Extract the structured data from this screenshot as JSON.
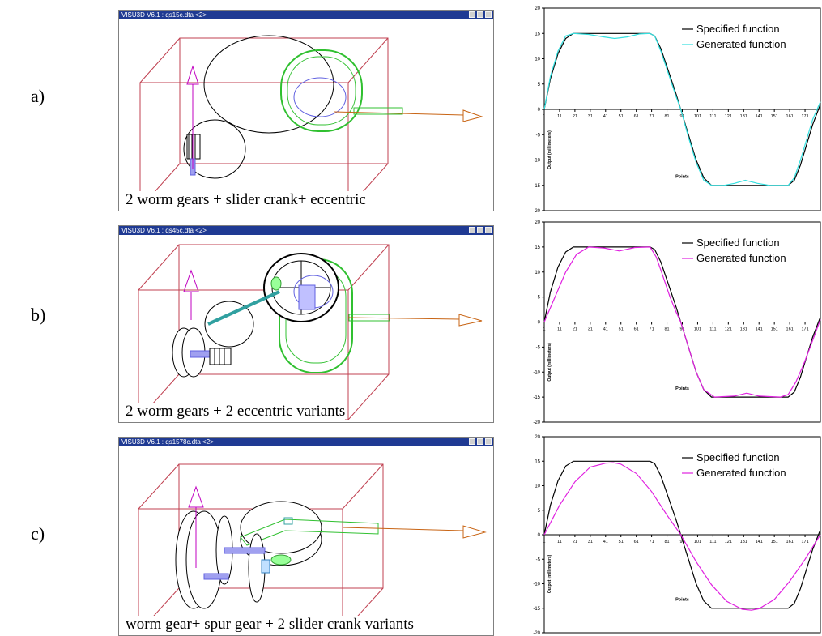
{
  "rows": [
    {
      "label": "a)",
      "window_title": "VISU3D V6.1 : qs15c.dta <2>",
      "caption": "2 worm gears + slider crank+ eccentric"
    },
    {
      "label": "b)",
      "window_title": "VISU3D V6.1 : qs45c.dta <2>",
      "caption": "2 worm gears + 2 eccentric variants"
    },
    {
      "label": "c)",
      "window_title": "VISU3D V6.1 : qs1578c.dta <2>",
      "caption": "worm gear+ spur gear + 2 slider crank variants"
    }
  ],
  "colors": {
    "titlebar": "#1f3a93",
    "box": "#c04050",
    "arrow_up": "#c000c0",
    "arrow_right": "#c86414",
    "green": "#30c030",
    "blue": "#6060e0",
    "specified": "#000000",
    "generated_a": "#33e0e0",
    "generated_bc": "#e020e0"
  },
  "chart_data": [
    {
      "type": "line",
      "xlabel": "Points",
      "ylabel": "Output (millimeters)",
      "x_ticks": [
        1,
        11,
        21,
        31,
        41,
        51,
        61,
        71,
        81,
        91,
        101,
        111,
        121,
        131,
        141,
        151,
        161,
        171
      ],
      "y_ticks": [
        20,
        15,
        10,
        5,
        0,
        -5,
        -10,
        -15,
        -20
      ],
      "ylim": [
        -20,
        20
      ],
      "xlim": [
        1,
        181
      ],
      "series": [
        {
          "name": "Specified function",
          "color": "#000000",
          "points": [
            [
              1,
              0
            ],
            [
              5,
              6
            ],
            [
              10,
              11
            ],
            [
              15,
              14
            ],
            [
              20,
              15
            ],
            [
              70,
              15
            ],
            [
              73,
              14.5
            ],
            [
              77,
              12
            ],
            [
              82,
              7.5
            ],
            [
              87,
              3
            ],
            [
              90,
              0
            ],
            [
              95,
              -5
            ],
            [
              100,
              -10
            ],
            [
              105,
              -13.5
            ],
            [
              110,
              -15
            ],
            [
              160,
              -15
            ],
            [
              164,
              -14
            ],
            [
              168,
              -11
            ],
            [
              172,
              -7
            ],
            [
              176,
              -3
            ],
            [
              181,
              1
            ]
          ]
        },
        {
          "name": "Generated function",
          "color": "#33e0e0",
          "points": [
            [
              1,
              0
            ],
            [
              5,
              6.5
            ],
            [
              10,
              11.5
            ],
            [
              15,
              14.5
            ],
            [
              20,
              15
            ],
            [
              30,
              14.8
            ],
            [
              40,
              14.3
            ],
            [
              47,
              14
            ],
            [
              55,
              14.3
            ],
            [
              63,
              14.9
            ],
            [
              70,
              15
            ],
            [
              73,
              14.5
            ],
            [
              77,
              11.5
            ],
            [
              82,
              7
            ],
            [
              87,
              2.5
            ],
            [
              90,
              0
            ],
            [
              95,
              -5.5
            ],
            [
              100,
              -10.5
            ],
            [
              105,
              -14
            ],
            [
              110,
              -15
            ],
            [
              118,
              -15
            ],
            [
              125,
              -14.6
            ],
            [
              132,
              -14
            ],
            [
              140,
              -14.6
            ],
            [
              148,
              -15
            ],
            [
              160,
              -15
            ],
            [
              164,
              -13.5
            ],
            [
              168,
              -10
            ],
            [
              172,
              -6
            ],
            [
              176,
              -2
            ],
            [
              181,
              1.5
            ]
          ]
        }
      ]
    },
    {
      "type": "line",
      "xlabel": "Points",
      "ylabel": "Output (millimeters)",
      "x_ticks": [
        1,
        11,
        21,
        31,
        41,
        51,
        61,
        71,
        81,
        91,
        101,
        111,
        121,
        131,
        141,
        151,
        161,
        171
      ],
      "y_ticks": [
        20,
        15,
        10,
        5,
        0,
        -5,
        -10,
        -15,
        -20
      ],
      "ylim": [
        -20,
        20
      ],
      "xlim": [
        1,
        181
      ],
      "series": [
        {
          "name": "Specified function",
          "color": "#000000",
          "points": [
            [
              1,
              0
            ],
            [
              5,
              6
            ],
            [
              10,
              11
            ],
            [
              15,
              14
            ],
            [
              20,
              15
            ],
            [
              70,
              15
            ],
            [
              73,
              14.5
            ],
            [
              77,
              12
            ],
            [
              82,
              7.5
            ],
            [
              87,
              3
            ],
            [
              90,
              0
            ],
            [
              95,
              -5
            ],
            [
              100,
              -10
            ],
            [
              105,
              -13.5
            ],
            [
              110,
              -15
            ],
            [
              160,
              -15
            ],
            [
              164,
              -14
            ],
            [
              168,
              -11
            ],
            [
              172,
              -7
            ],
            [
              176,
              -3
            ],
            [
              181,
              1
            ]
          ]
        },
        {
          "name": "Generated function",
          "color": "#e020e0",
          "points": [
            [
              1,
              0
            ],
            [
              8,
              5
            ],
            [
              15,
              10
            ],
            [
              22,
              13.5
            ],
            [
              30,
              15
            ],
            [
              40,
              14.8
            ],
            [
              50,
              14.2
            ],
            [
              60,
              14.9
            ],
            [
              70,
              15
            ],
            [
              74,
              13
            ],
            [
              78,
              9.5
            ],
            [
              83,
              5
            ],
            [
              87,
              2
            ],
            [
              90,
              0
            ],
            [
              95,
              -5
            ],
            [
              100,
              -10
            ],
            [
              105,
              -13.5
            ],
            [
              112,
              -15
            ],
            [
              125,
              -14.8
            ],
            [
              133,
              -14.2
            ],
            [
              141,
              -14.8
            ],
            [
              155,
              -15
            ],
            [
              160,
              -14.5
            ],
            [
              165,
              -12
            ],
            [
              170,
              -8.5
            ],
            [
              175,
              -4.5
            ],
            [
              181,
              0.5
            ]
          ]
        }
      ]
    },
    {
      "type": "line",
      "xlabel": "Points",
      "ylabel": "Output (millimeters)",
      "x_ticks": [
        1,
        11,
        21,
        31,
        41,
        51,
        61,
        71,
        81,
        91,
        101,
        111,
        121,
        131,
        141,
        151,
        161,
        171
      ],
      "y_ticks": [
        20,
        15,
        10,
        5,
        0,
        -5,
        -10,
        -15,
        -20
      ],
      "ylim": [
        -20,
        20
      ],
      "xlim": [
        1,
        181
      ],
      "series": [
        {
          "name": "Specified function",
          "color": "#000000",
          "points": [
            [
              1,
              0
            ],
            [
              5,
              6
            ],
            [
              10,
              11
            ],
            [
              15,
              14
            ],
            [
              20,
              15
            ],
            [
              70,
              15
            ],
            [
              73,
              14.5
            ],
            [
              77,
              12
            ],
            [
              82,
              7.5
            ],
            [
              87,
              3
            ],
            [
              90,
              0
            ],
            [
              95,
              -5
            ],
            [
              100,
              -10
            ],
            [
              105,
              -13.5
            ],
            [
              110,
              -15
            ],
            [
              160,
              -15
            ],
            [
              164,
              -14
            ],
            [
              168,
              -11
            ],
            [
              172,
              -7
            ],
            [
              176,
              -3
            ],
            [
              181,
              1
            ]
          ]
        },
        {
          "name": "Generated function",
          "color": "#e020e0",
          "points": [
            [
              1,
              0
            ],
            [
              11,
              6
            ],
            [
              21,
              10.8
            ],
            [
              31,
              13.8
            ],
            [
              41,
              14.6
            ],
            [
              46,
              14.7
            ],
            [
              51,
              14.4
            ],
            [
              61,
              12.5
            ],
            [
              71,
              8.8
            ],
            [
              81,
              4
            ],
            [
              90,
              0
            ],
            [
              100,
              -5.5
            ],
            [
              110,
              -10.2
            ],
            [
              120,
              -13.6
            ],
            [
              130,
              -15.2
            ],
            [
              136,
              -15.4
            ],
            [
              141,
              -15.1
            ],
            [
              151,
              -13.2
            ],
            [
              161,
              -9.5
            ],
            [
              171,
              -5
            ],
            [
              181,
              0
            ]
          ]
        }
      ]
    }
  ]
}
